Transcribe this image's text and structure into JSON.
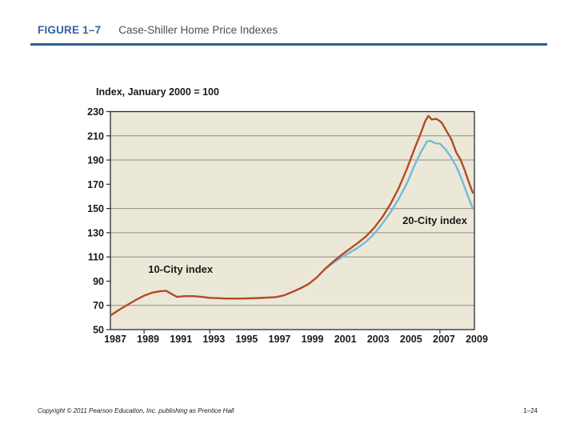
{
  "header": {
    "figure_label": "FIGURE 1–7",
    "figure_title": "Case-Shiller Home Price Indexes",
    "accent_color": "#2e5e92"
  },
  "footer": {
    "copyright": "Copyright © 2011 Pearson Education, Inc. publishing as Prentice Hall",
    "page_number": "1–24"
  },
  "chart_data": {
    "type": "line",
    "title": "Index, January 2000 = 100",
    "xlabel": "",
    "ylabel": "",
    "xlim": [
      1987,
      2009
    ],
    "ylim": [
      50,
      230
    ],
    "x_tick_labels": [
      1987,
      1989,
      1991,
      1993,
      1995,
      1997,
      1999,
      2001,
      2003,
      2005,
      2007,
      2009
    ],
    "x_axis_tick_marks": [
      1989,
      1993,
      2007
    ],
    "y_tick_labels": [
      230,
      210,
      190,
      170,
      150,
      130,
      110,
      90,
      70,
      50
    ],
    "gridline_values": [
      210,
      190,
      150,
      130,
      110,
      70
    ],
    "plot_bg": "#ece8d8",
    "frame_color": "#2b2b2b",
    "gridline_color": "#8f8e85",
    "legend_position": "inline-annotations",
    "grid": "partial-horizontal",
    "series": [
      {
        "name": "20-City index",
        "color": "#74b9d8",
        "points": [
          [
            2000,
            100
          ],
          [
            2000.5,
            105
          ],
          [
            2001,
            109.5
          ],
          [
            2001.5,
            113.5
          ],
          [
            2002,
            117.5
          ],
          [
            2002.5,
            122.5
          ],
          [
            2003,
            129
          ],
          [
            2003.5,
            137.5
          ],
          [
            2004,
            147
          ],
          [
            2004.5,
            158
          ],
          [
            2005,
            171
          ],
          [
            2005.5,
            187
          ],
          [
            2005.9,
            198
          ],
          [
            2006.2,
            205
          ],
          [
            2006.4,
            206
          ],
          [
            2006.7,
            204
          ],
          [
            2007,
            203.5
          ],
          [
            2007.3,
            199.5
          ],
          [
            2007.6,
            194
          ],
          [
            2008,
            184.5
          ],
          [
            2008.3,
            175
          ],
          [
            2008.6,
            164
          ],
          [
            2009,
            150
          ]
        ]
      },
      {
        "name": "10-City index",
        "color": "#b34a26",
        "points": [
          [
            1987,
            62
          ],
          [
            1987.5,
            66.5
          ],
          [
            1988,
            70.5
          ],
          [
            1988.5,
            74.5
          ],
          [
            1989,
            78
          ],
          [
            1989.5,
            80.5
          ],
          [
            1990,
            81.8
          ],
          [
            1990.35,
            82
          ],
          [
            1990.8,
            78.5
          ],
          [
            1991,
            77
          ],
          [
            1991.5,
            77.6
          ],
          [
            1992,
            77.6
          ],
          [
            1992.5,
            77
          ],
          [
            1993,
            76.2
          ],
          [
            1994,
            75.6
          ],
          [
            1995,
            75.6
          ],
          [
            1996,
            76.1
          ],
          [
            1997,
            76.8
          ],
          [
            1997.5,
            78.2
          ],
          [
            1998,
            81
          ],
          [
            1998.5,
            84
          ],
          [
            1999,
            87.5
          ],
          [
            1999.5,
            93
          ],
          [
            2000,
            100
          ],
          [
            2000.5,
            106
          ],
          [
            2001,
            111.5
          ],
          [
            2001.5,
            116.5
          ],
          [
            2002,
            121.5
          ],
          [
            2002.5,
            127
          ],
          [
            2003,
            134
          ],
          [
            2003.5,
            143
          ],
          [
            2004,
            154
          ],
          [
            2004.5,
            167
          ],
          [
            2005,
            183
          ],
          [
            2005.5,
            201
          ],
          [
            2005.8,
            211
          ],
          [
            2006.1,
            222
          ],
          [
            2006.3,
            226.5
          ],
          [
            2006.5,
            223.5
          ],
          [
            2006.8,
            224
          ],
          [
            2007.1,
            221
          ],
          [
            2007.4,
            214
          ],
          [
            2007.7,
            207
          ],
          [
            2008,
            196
          ],
          [
            2008.25,
            190.5
          ],
          [
            2008.5,
            182
          ],
          [
            2008.75,
            172
          ],
          [
            2009,
            163
          ]
        ]
      }
    ],
    "annotations": [
      {
        "text": "10-City index",
        "x": 1989.25,
        "y": 96.9
      },
      {
        "text": "20-City index",
        "x": 2004.72,
        "y": 137.2
      }
    ]
  }
}
